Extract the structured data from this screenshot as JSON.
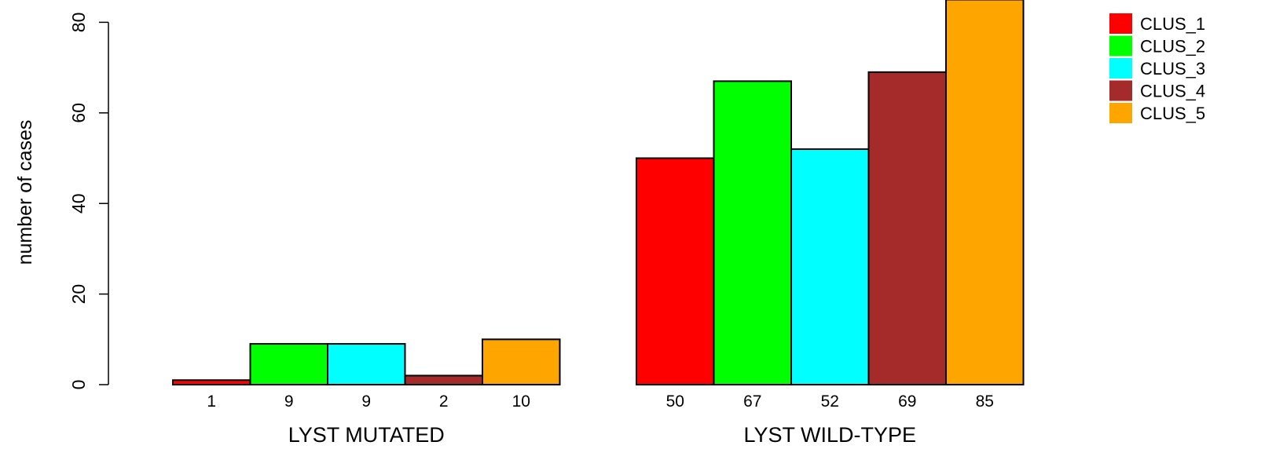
{
  "chart_data": {
    "type": "bar",
    "ylabel": "number of cases",
    "ylim": [
      0,
      85
    ],
    "yticks": [
      0,
      20,
      40,
      60,
      80
    ],
    "groups": [
      "LYST MUTATED",
      "LYST WILD-TYPE"
    ],
    "series": [
      {
        "name": "CLUS_1",
        "color": "#ff0000",
        "values": [
          1,
          50
        ]
      },
      {
        "name": "CLUS_2",
        "color": "#00ff00",
        "values": [
          9,
          67
        ]
      },
      {
        "name": "CLUS_3",
        "color": "#00ffff",
        "values": [
          9,
          52
        ]
      },
      {
        "name": "CLUS_4",
        "color": "#a52a2a",
        "values": [
          2,
          69
        ]
      },
      {
        "name": "CLUS_5",
        "color": "#ffa500",
        "values": [
          10,
          85
        ]
      }
    ],
    "legend_position": "top-right",
    "grid": false
  }
}
